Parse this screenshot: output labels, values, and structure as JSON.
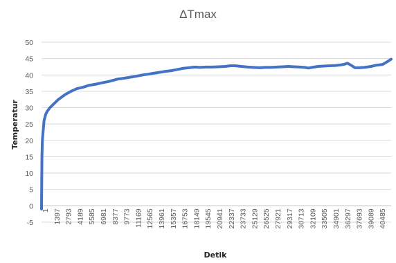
{
  "chart_data": {
    "type": "line",
    "title": "ΔTmax",
    "xlabel": "Detik",
    "ylabel": "Temperatur",
    "ylim": [
      -5,
      50
    ],
    "yticks": [
      -5,
      0,
      5,
      10,
      15,
      20,
      25,
      30,
      35,
      40,
      45,
      50
    ],
    "xlim": [
      1,
      41500
    ],
    "xtick_labels": [
      "1",
      "1397",
      "2793",
      "4189",
      "5585",
      "6981",
      "8377",
      "9773",
      "11169",
      "12565",
      "13961",
      "15357",
      "16753",
      "18149",
      "19545",
      "20941",
      "22337",
      "23733",
      "25129",
      "26525",
      "27921",
      "29317",
      "30713",
      "32109",
      "33505",
      "34901",
      "36297",
      "37693",
      "39089",
      "40485"
    ],
    "grid": "horizontal",
    "legend": "none",
    "colors": {
      "series": "#4472C4"
    },
    "series": [
      {
        "x": [
          1,
          20,
          50,
          100,
          200,
          300,
          500,
          700,
          1000,
          1400,
          2000,
          2800,
          3500,
          4200,
          5000,
          5600,
          6500,
          7000,
          8000,
          8400,
          9000,
          9800,
          10500,
          11200,
          12000,
          12600,
          13300,
          14000,
          14700,
          15400,
          16000,
          16800,
          17500,
          18200,
          18800,
          19500,
          20300,
          21000,
          21800,
          22400,
          23000,
          23700,
          24500,
          25100,
          25900,
          26500,
          27200,
          27900,
          28600,
          29300,
          30000,
          30700,
          31200,
          31700,
          32100,
          32800,
          33500,
          34200,
          34900,
          35600,
          36000,
          36300,
          36800,
          37200,
          37700,
          38300,
          39100,
          39800,
          40500,
          41000,
          41500
        ],
        "y": [
          -1,
          5,
          15,
          20,
          23,
          26,
          28,
          29,
          30,
          31,
          32.5,
          34,
          35,
          35.8,
          36.3,
          36.8,
          37.2,
          37.5,
          38,
          38.3,
          38.7,
          39,
          39.3,
          39.6,
          40,
          40.2,
          40.5,
          40.8,
          41.1,
          41.3,
          41.6,
          42,
          42.2,
          42.4,
          42.3,
          42.4,
          42.4,
          42.5,
          42.6,
          42.8,
          42.8,
          42.6,
          42.4,
          42.3,
          42.2,
          42.3,
          42.3,
          42.4,
          42.5,
          42.6,
          42.5,
          42.4,
          42.3,
          42.1,
          42.3,
          42.6,
          42.7,
          42.8,
          42.9,
          43.1,
          43.3,
          43.6,
          42.9,
          42.2,
          42.2,
          42.3,
          42.6,
          43,
          43.2,
          44,
          44.8
        ]
      }
    ]
  }
}
